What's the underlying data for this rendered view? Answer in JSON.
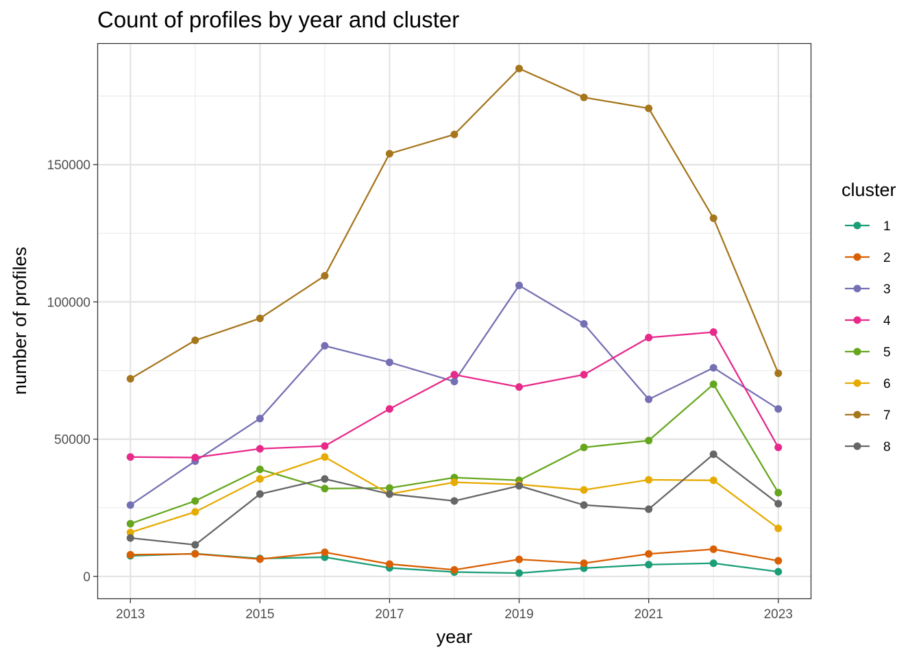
{
  "chart_data": {
    "type": "line",
    "title": "Count of profiles by year and cluster",
    "xlabel": "year",
    "ylabel": "number of profiles",
    "x": [
      2013,
      2014,
      2015,
      2016,
      2017,
      2018,
      2019,
      2020,
      2021,
      2022,
      2023
    ],
    "xlim": [
      2012.5,
      2023.5
    ],
    "ylim": [
      -8000,
      194000
    ],
    "x_ticks": [
      2013,
      2015,
      2017,
      2019,
      2021,
      2023
    ],
    "x_tick_labels": [
      "2013",
      "2015",
      "2017",
      "2019",
      "2021",
      "2023"
    ],
    "y_ticks": [
      0,
      50000,
      100000,
      150000
    ],
    "y_tick_labels": [
      "0",
      "50000",
      "100000",
      "150000"
    ],
    "grid": true,
    "legend": {
      "title": "cluster",
      "position": "right"
    },
    "series": [
      {
        "name": "1",
        "color": "#1b9e77",
        "values": [
          7500,
          8300,
          6500,
          7000,
          3100,
          1600,
          1200,
          3000,
          4300,
          4800,
          1700
        ]
      },
      {
        "name": "2",
        "color": "#d95f02",
        "values": [
          7900,
          8200,
          6300,
          8800,
          4500,
          2400,
          6200,
          4800,
          8200,
          9900,
          5700
        ]
      },
      {
        "name": "3",
        "color": "#7570b3",
        "values": [
          26000,
          42000,
          57500,
          84000,
          78000,
          71000,
          106000,
          92000,
          64500,
          76000,
          61000
        ]
      },
      {
        "name": "4",
        "color": "#e7298a",
        "values": [
          43500,
          43300,
          46500,
          47500,
          61000,
          73500,
          69000,
          73500,
          87000,
          89000,
          47000
        ]
      },
      {
        "name": "5",
        "color": "#66a61e",
        "values": [
          19200,
          27500,
          39000,
          32000,
          32200,
          36000,
          35000,
          47000,
          49500,
          70000,
          30500
        ]
      },
      {
        "name": "6",
        "color": "#e6ab02",
        "values": [
          16000,
          23500,
          35500,
          43500,
          30000,
          34300,
          33500,
          31500,
          35200,
          35000,
          17500
        ]
      },
      {
        "name": "7",
        "color": "#a6761d",
        "values": [
          72000,
          86000,
          94000,
          109500,
          154000,
          161000,
          185000,
          174500,
          170500,
          130500,
          74000
        ]
      },
      {
        "name": "8",
        "color": "#666666",
        "values": [
          14000,
          11500,
          30000,
          35500,
          30000,
          27500,
          33000,
          26000,
          24500,
          44500,
          26500
        ]
      }
    ]
  }
}
